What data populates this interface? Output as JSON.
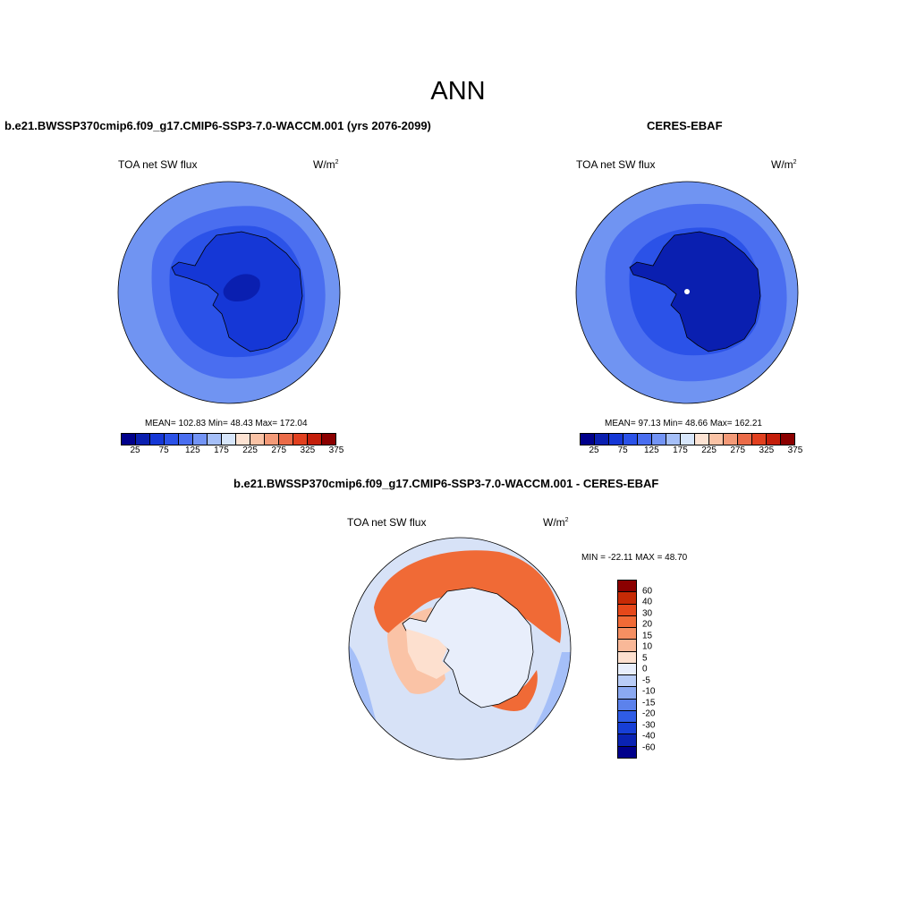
{
  "figure": {
    "title": "ANN"
  },
  "panels": {
    "model": {
      "title": "b.e21.BWSSP370cmip6.f09_g17.CMIP6-SSP3-7.0-WACCM.001 (yrs 2076-2099)",
      "variable": "TOA net SW flux",
      "units": "W/m",
      "units_exp": "2",
      "stats": "MEAN= 102.83  Min=  48.43  Max= 172.04"
    },
    "obs": {
      "title": "CERES-EBAF",
      "variable": "TOA net SW flux",
      "units": "W/m",
      "units_exp": "2",
      "stats": "MEAN=  97.13  Min=  48.66  Max= 162.21"
    },
    "diff": {
      "title": "b.e21.BWSSP370cmip6.f09_g17.CMIP6-SSP3-7.0-WACCM.001 - CERES-EBAF",
      "variable": "TOA net SW flux",
      "units": "W/m",
      "units_exp": "2",
      "stats": "MIN = -22.11 MAX =  48.70"
    }
  },
  "colorbars": {
    "field": {
      "colors": [
        "#00008b",
        "#0a1fb0",
        "#1537d6",
        "#2b52e8",
        "#4a6ef0",
        "#7394f5",
        "#a5bff8",
        "#d7e6fb",
        "#fde3d3",
        "#fac3a6",
        "#f39a78",
        "#eb6b48",
        "#e1401f",
        "#c41e0a",
        "#8b0000"
      ],
      "tick_labels": [
        "25",
        "75",
        "125",
        "175",
        "225",
        "275",
        "325",
        "375"
      ]
    },
    "diff": {
      "colors": [
        "#8b0000",
        "#c62a05",
        "#e5481a",
        "#f06a36",
        "#f58f62",
        "#f9b898",
        "#fde0cf",
        "#e8eefb",
        "#b9cdf7",
        "#8ba9f2",
        "#5c82ec",
        "#2f5ce6",
        "#173fd6",
        "#0a23b3",
        "#00008b"
      ],
      "labels": [
        "60",
        "40",
        "30",
        "20",
        "15",
        "10",
        "5",
        "0",
        "-5",
        "-10",
        "-15",
        "-20",
        "-30",
        "-40",
        "-60"
      ]
    }
  },
  "colors": {
    "field_outer": "#7094f2",
    "field_mid": "#4a6ef0",
    "field_inner": "#2b52e8",
    "field_continent": "#1537d6",
    "field_core": "#0a1fb0",
    "diff_ocean": "#d7e2f7",
    "diff_warm": "#f06a36",
    "diff_warm_light": "#fac3a6",
    "diff_cool": "#a5bff8",
    "diff_land": "#e8eefb"
  }
}
